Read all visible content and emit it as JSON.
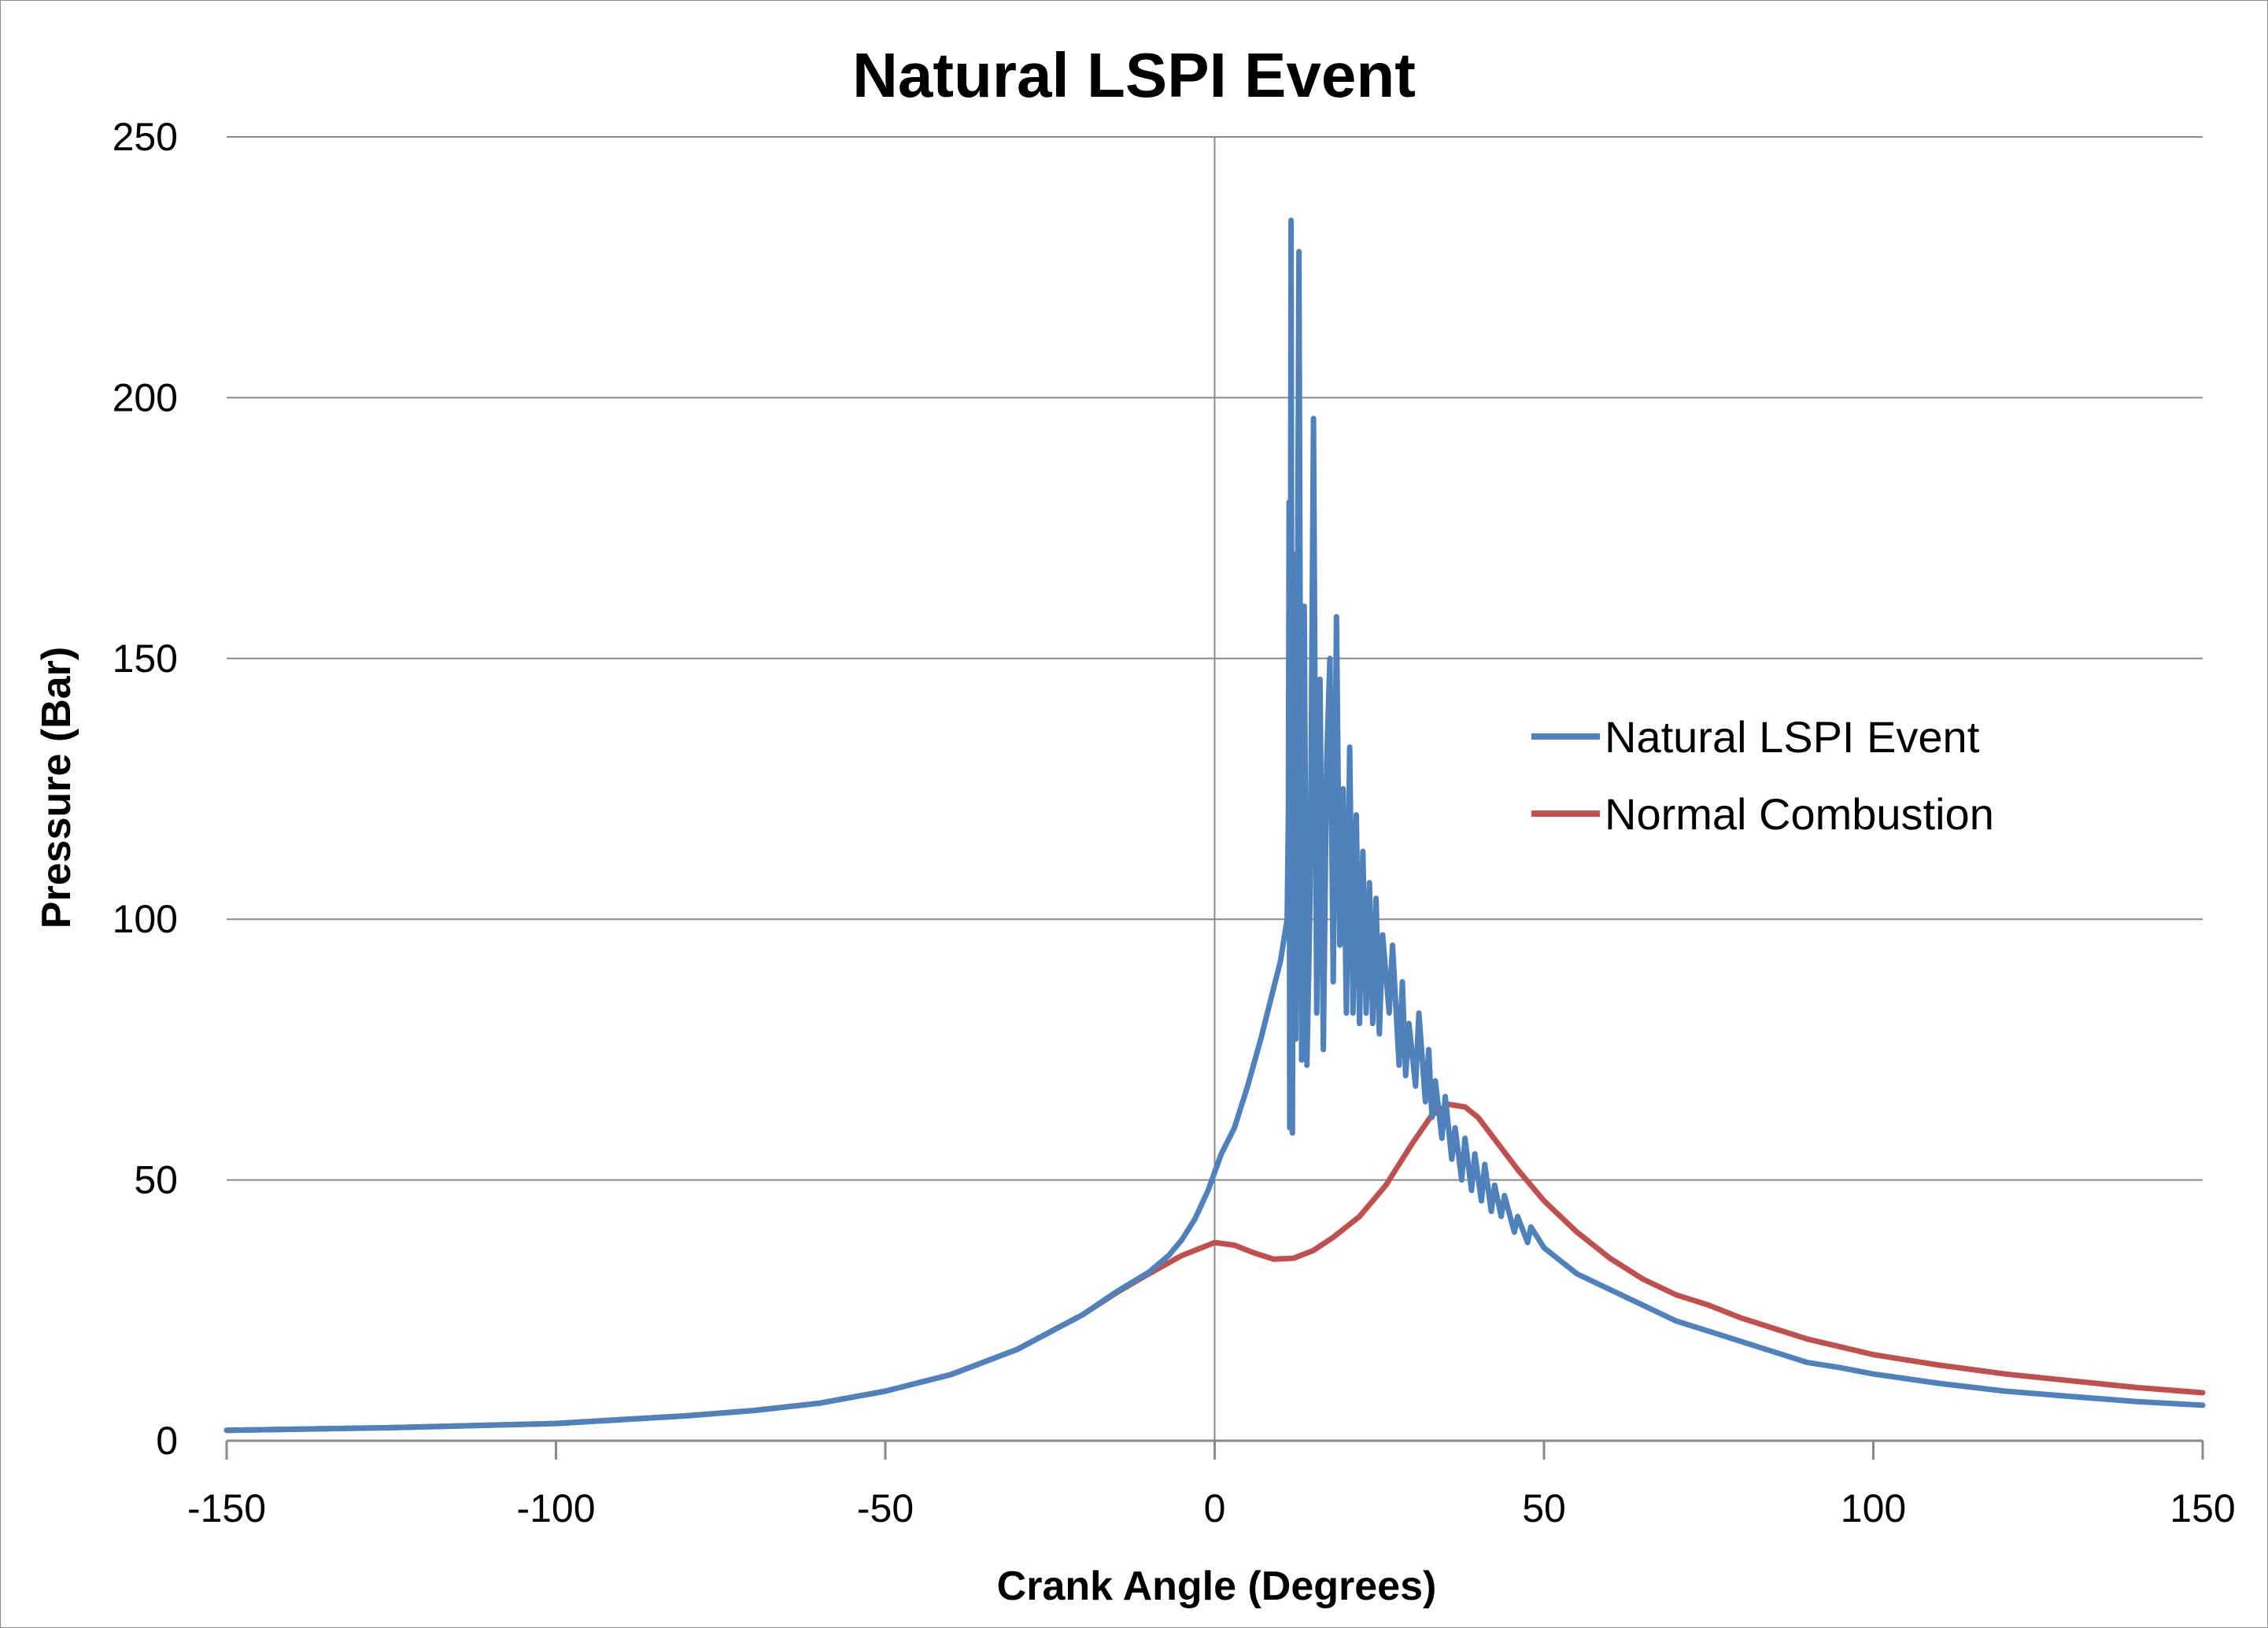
{
  "chart_data": {
    "type": "line",
    "title": "Natural LSPI Event",
    "xlabel": "Crank Angle (Degrees)",
    "ylabel": "Pressure (Bar)",
    "xlim": [
      -150,
      150
    ],
    "ylim": [
      0,
      250
    ],
    "x_ticks": [
      "-150",
      "-100",
      "-50",
      "0",
      "50",
      "100",
      "150"
    ],
    "y_ticks": [
      "0",
      "50",
      "100",
      "150",
      "200",
      "250"
    ],
    "grid": "horizontal",
    "legend_position": "right",
    "series": [
      {
        "name": "Natural LSPI Event",
        "color": "#4F81BD",
        "points": [
          [
            -150,
            2
          ],
          [
            -125,
            2.5
          ],
          [
            -100,
            3.3
          ],
          [
            -80,
            4.8
          ],
          [
            -70,
            5.8
          ],
          [
            -60,
            7.2
          ],
          [
            -50,
            9.5
          ],
          [
            -40,
            12.7
          ],
          [
            -30,
            17.5
          ],
          [
            -20,
            24.2
          ],
          [
            -15,
            28.5
          ],
          [
            -10,
            32.3
          ],
          [
            -7,
            35.5
          ],
          [
            -5,
            38.5
          ],
          [
            -3,
            42.5
          ],
          [
            -1,
            48
          ],
          [
            1,
            55
          ],
          [
            3,
            60
          ],
          [
            5,
            68
          ],
          [
            7,
            77
          ],
          [
            9,
            87
          ],
          [
            10,
            92
          ],
          [
            11,
            100
          ],
          [
            11.2,
            120
          ],
          [
            11.3,
            180
          ],
          [
            11.4,
            60
          ],
          [
            11.6,
            234
          ],
          [
            11.8,
            59
          ],
          [
            12,
            170
          ],
          [
            12.3,
            77
          ],
          [
            12.8,
            228
          ],
          [
            13.2,
            73
          ],
          [
            13.6,
            160
          ],
          [
            14,
            72
          ],
          [
            14.5,
            105
          ],
          [
            15,
            196
          ],
          [
            15.5,
            82
          ],
          [
            16,
            146
          ],
          [
            16.5,
            75
          ],
          [
            17,
            130
          ],
          [
            17.5,
            150
          ],
          [
            18,
            88
          ],
          [
            18.5,
            158
          ],
          [
            19,
            95
          ],
          [
            19.5,
            125
          ],
          [
            20,
            82
          ],
          [
            20.5,
            133
          ],
          [
            21,
            82
          ],
          [
            21.5,
            120
          ],
          [
            22,
            80
          ],
          [
            22.5,
            113
          ],
          [
            23,
            82
          ],
          [
            23.5,
            107
          ],
          [
            24,
            80
          ],
          [
            24.5,
            104
          ],
          [
            25,
            78
          ],
          [
            25.5,
            97
          ],
          [
            26.5,
            82
          ],
          [
            27,
            95
          ],
          [
            28,
            72
          ],
          [
            28.5,
            88
          ],
          [
            29,
            70
          ],
          [
            29.5,
            80
          ],
          [
            30.5,
            68
          ],
          [
            31,
            82
          ],
          [
            32,
            65
          ],
          [
            32.5,
            75
          ],
          [
            33,
            62
          ],
          [
            33.5,
            69
          ],
          [
            34.5,
            58
          ],
          [
            35,
            66
          ],
          [
            36,
            54
          ],
          [
            36.5,
            60
          ],
          [
            37.5,
            50
          ],
          [
            38,
            58
          ],
          [
            39,
            48
          ],
          [
            39.5,
            55
          ],
          [
            40.5,
            46
          ],
          [
            41,
            53
          ],
          [
            42,
            44
          ],
          [
            42.5,
            49
          ],
          [
            43.5,
            43
          ],
          [
            44,
            47
          ],
          [
            45.5,
            40
          ],
          [
            46,
            43
          ],
          [
            47.5,
            38
          ],
          [
            48,
            41
          ],
          [
            50,
            37
          ],
          [
            52,
            35
          ],
          [
            55,
            32
          ],
          [
            60,
            29
          ],
          [
            65,
            26
          ],
          [
            70,
            23
          ],
          [
            75,
            21
          ],
          [
            80,
            19
          ],
          [
            85,
            17
          ],
          [
            90,
            15
          ],
          [
            95,
            14
          ],
          [
            100,
            12.8
          ],
          [
            110,
            11
          ],
          [
            120,
            9.5
          ],
          [
            130,
            8.5
          ],
          [
            140,
            7.5
          ],
          [
            150,
            6.8
          ]
        ]
      },
      {
        "name": "Normal Combustion",
        "color": "#C0504D",
        "points": [
          [
            -150,
            2
          ],
          [
            -125,
            2.5
          ],
          [
            -100,
            3.3
          ],
          [
            -80,
            4.8
          ],
          [
            -70,
            5.8
          ],
          [
            -60,
            7.2
          ],
          [
            -50,
            9.5
          ],
          [
            -40,
            12.7
          ],
          [
            -30,
            17.5
          ],
          [
            -20,
            24.2
          ],
          [
            -15,
            28.3
          ],
          [
            -10,
            32
          ],
          [
            -5,
            35.5
          ],
          [
            0,
            38
          ],
          [
            3,
            37.5
          ],
          [
            6,
            36
          ],
          [
            9,
            34.8
          ],
          [
            12,
            35
          ],
          [
            15,
            36.5
          ],
          [
            18,
            39
          ],
          [
            22,
            43
          ],
          [
            26,
            49
          ],
          [
            30,
            57
          ],
          [
            33,
            62.5
          ],
          [
            35.5,
            64.5
          ],
          [
            38,
            64
          ],
          [
            40,
            62
          ],
          [
            43,
            57
          ],
          [
            46,
            52
          ],
          [
            50,
            46
          ],
          [
            55,
            40
          ],
          [
            60,
            35
          ],
          [
            65,
            31
          ],
          [
            70,
            28
          ],
          [
            75,
            26
          ],
          [
            80,
            23.5
          ],
          [
            85,
            21.5
          ],
          [
            90,
            19.5
          ],
          [
            95,
            18
          ],
          [
            100,
            16.5
          ],
          [
            110,
            14.5
          ],
          [
            120,
            12.8
          ],
          [
            130,
            11.5
          ],
          [
            140,
            10.2
          ],
          [
            150,
            9.2
          ]
        ]
      }
    ]
  }
}
